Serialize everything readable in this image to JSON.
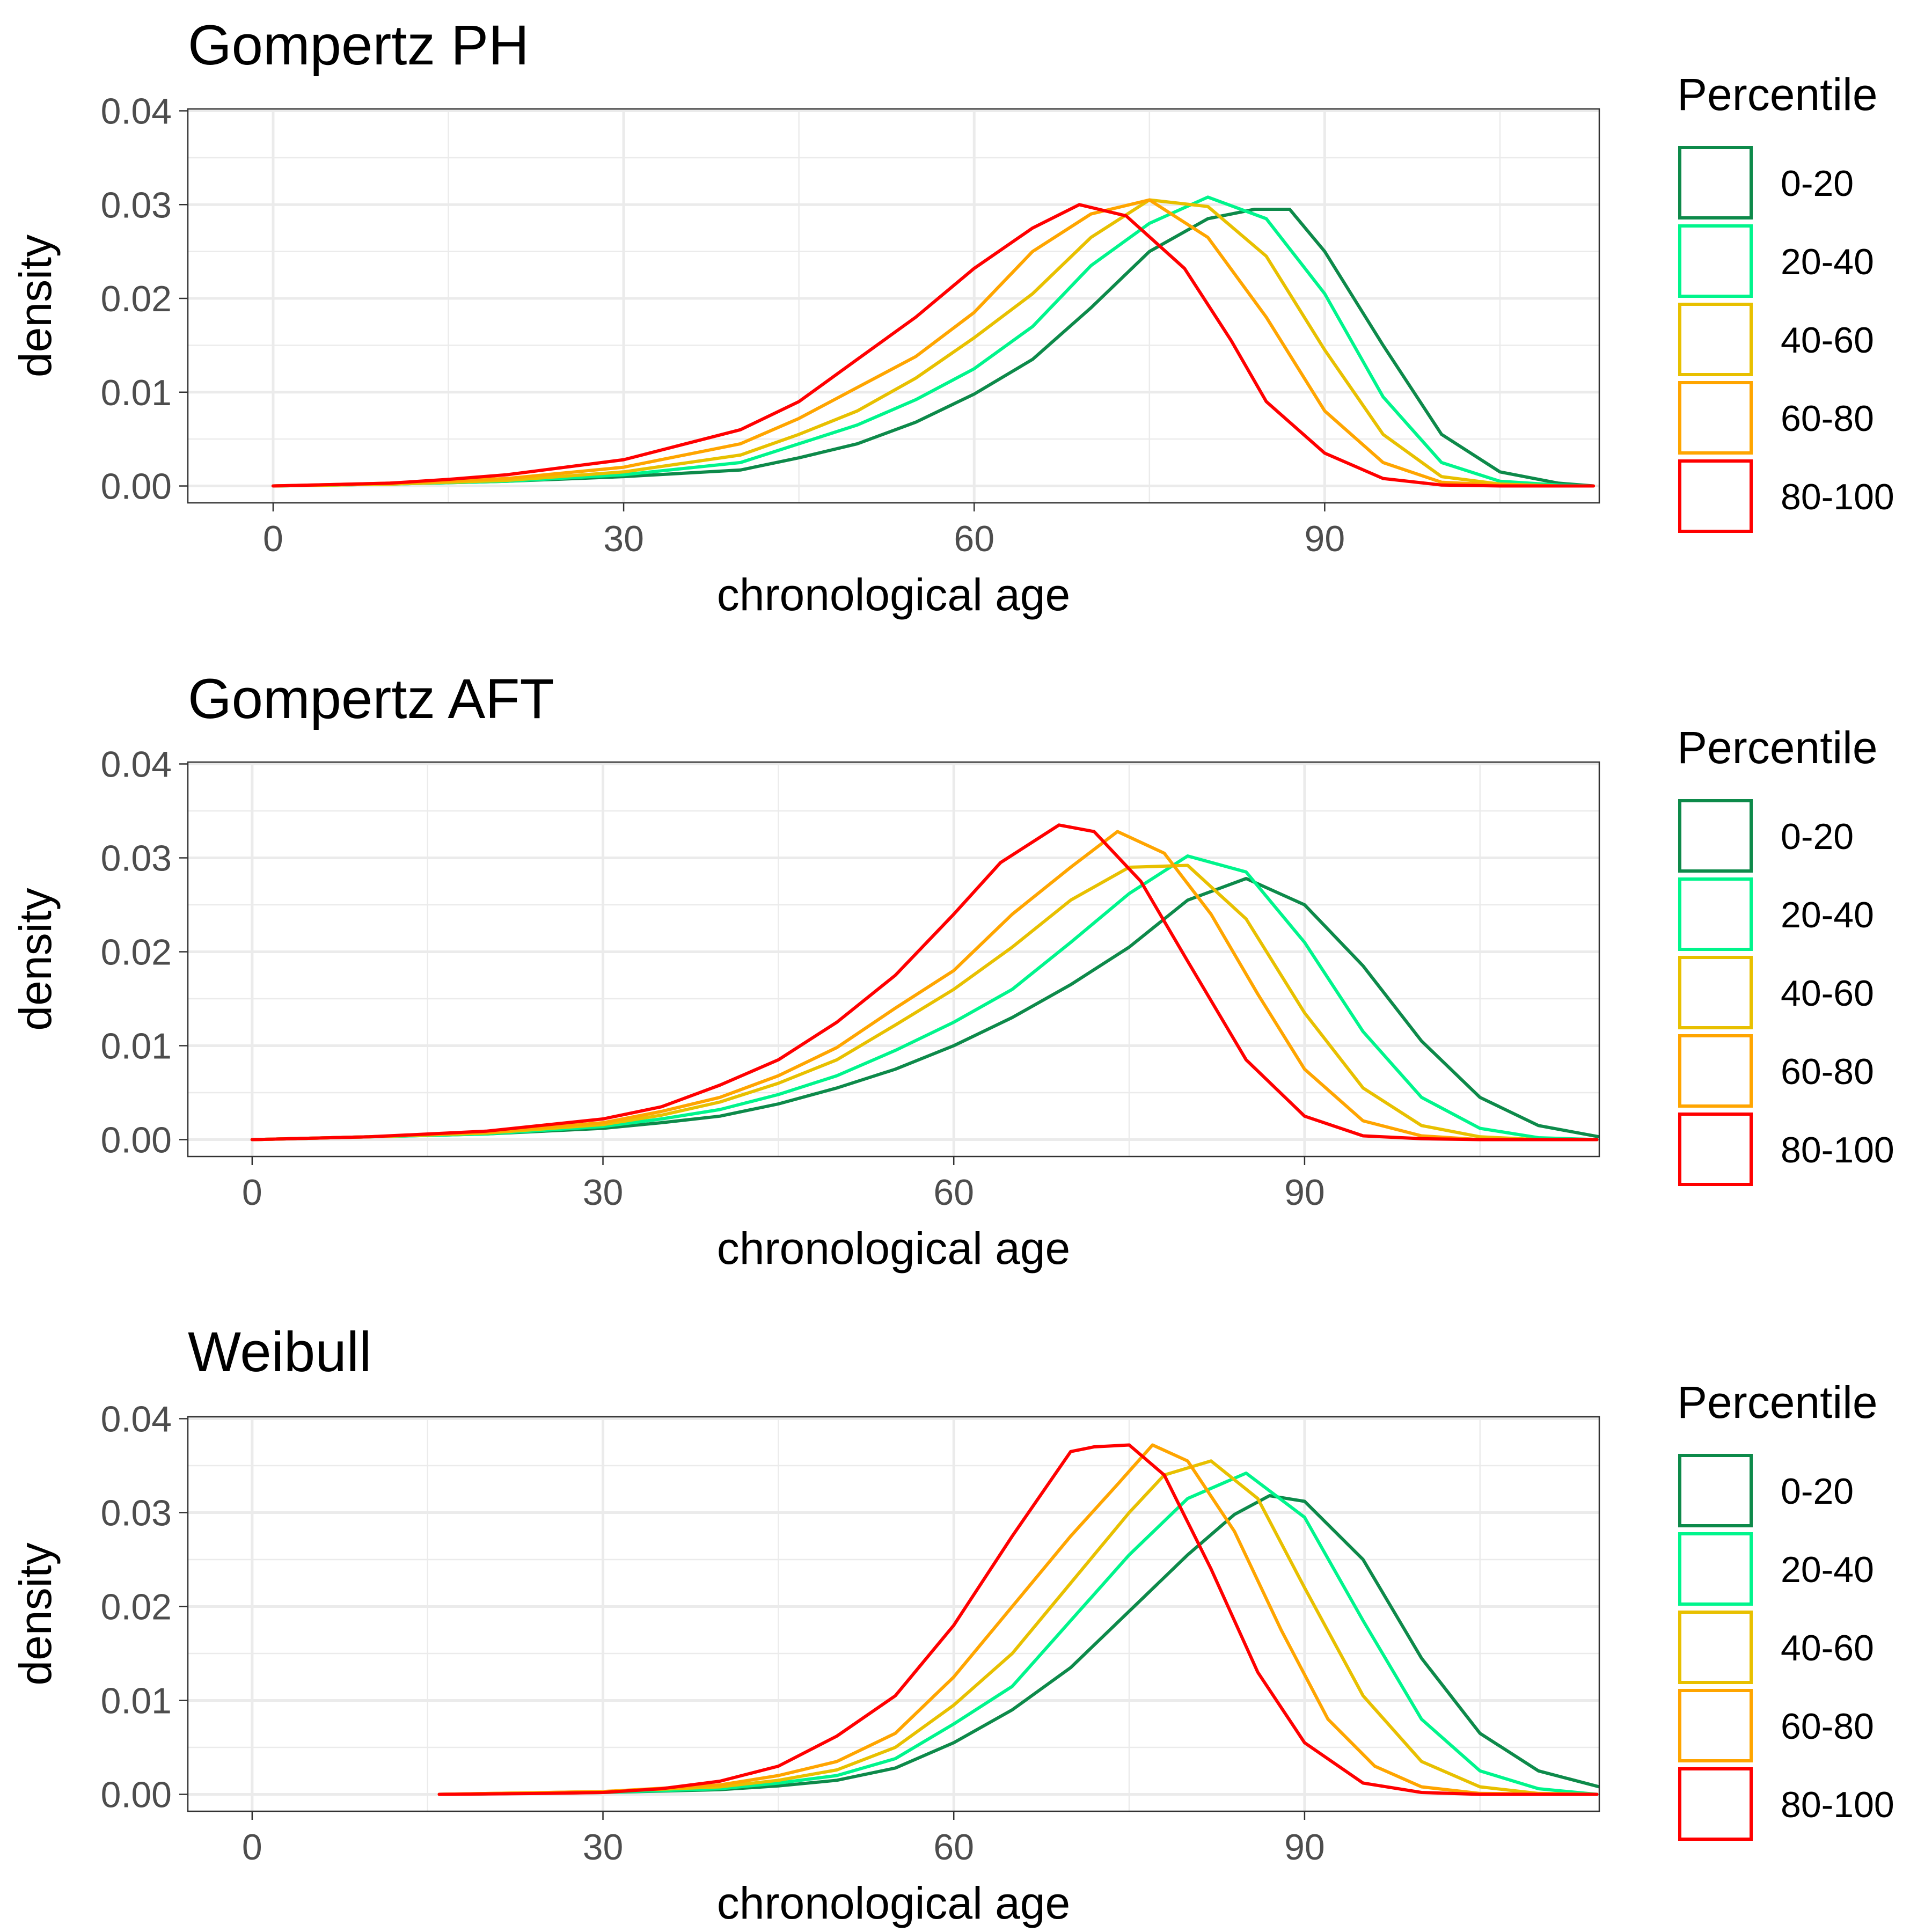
{
  "chart_data": [
    {
      "type": "line",
      "title": "Gompertz PH",
      "xlabel": "chronological age",
      "ylabel": "density",
      "xlim": [
        -7.3,
        113.5
      ],
      "ylim": [
        -0.0018,
        0.0402
      ],
      "x_ticks": [
        0,
        30,
        60,
        90
      ],
      "y_ticks": [
        0,
        0.01,
        0.02,
        0.03,
        0.04
      ],
      "x_tick_labels": [
        "0",
        "30",
        "60",
        "90"
      ],
      "y_tick_labels": [
        "0.00",
        "0.01",
        "0.02",
        "0.03",
        "0.04"
      ],
      "grid": true,
      "legend": {
        "title": "Percentile",
        "position": "right"
      },
      "series": [
        {
          "name": "0-20",
          "color": "#0d8a4a",
          "x": [
            0,
            10,
            20,
            30,
            40,
            45,
            50,
            55,
            60,
            65,
            70,
            75,
            80,
            84,
            87,
            90,
            95,
            100,
            105,
            110,
            113
          ],
          "y": [
            0,
            0.0002,
            0.0005,
            0.001,
            0.0017,
            0.003,
            0.0045,
            0.0068,
            0.0098,
            0.0135,
            0.019,
            0.025,
            0.0285,
            0.0295,
            0.0295,
            0.025,
            0.015,
            0.0055,
            0.0015,
            0.0003,
            0
          ]
        },
        {
          "name": "20-40",
          "color": "#00f58c",
          "x": [
            0,
            10,
            20,
            30,
            40,
            45,
            50,
            55,
            60,
            65,
            70,
            75,
            80,
            85,
            90,
            95,
            100,
            105,
            110,
            113
          ],
          "y": [
            0,
            0.0002,
            0.0005,
            0.0012,
            0.0025,
            0.0045,
            0.0065,
            0.0092,
            0.0125,
            0.017,
            0.0235,
            0.028,
            0.0308,
            0.0285,
            0.0205,
            0.0095,
            0.0025,
            0.0005,
            0.0001,
            0
          ]
        },
        {
          "name": "40-60",
          "color": "#e8c000",
          "x": [
            0,
            10,
            20,
            30,
            40,
            45,
            50,
            55,
            60,
            65,
            70,
            75,
            80,
            85,
            90,
            95,
            100,
            105,
            110,
            113
          ],
          "y": [
            0,
            0.0002,
            0.0006,
            0.0015,
            0.0033,
            0.0055,
            0.008,
            0.0115,
            0.0158,
            0.0205,
            0.0265,
            0.0305,
            0.0298,
            0.0245,
            0.0145,
            0.0055,
            0.001,
            0.0002,
            0,
            0
          ]
        },
        {
          "name": "60-80",
          "color": "#ffa500",
          "x": [
            0,
            10,
            20,
            30,
            40,
            45,
            50,
            55,
            60,
            65,
            70,
            75,
            80,
            85,
            90,
            95,
            100,
            105,
            110,
            113
          ],
          "y": [
            0,
            0.0003,
            0.0008,
            0.002,
            0.0045,
            0.0072,
            0.0105,
            0.0138,
            0.0185,
            0.025,
            0.029,
            0.0305,
            0.0265,
            0.018,
            0.008,
            0.0025,
            0.0004,
            0.0001,
            0,
            0
          ]
        },
        {
          "name": "80-100",
          "color": "#ff0000",
          "x": [
            0,
            10,
            15,
            20,
            30,
            40,
            45,
            50,
            55,
            60,
            65,
            69,
            73,
            78,
            82,
            85,
            90,
            95,
            100,
            105,
            113
          ],
          "y": [
            0,
            0.0003,
            0.0007,
            0.0012,
            0.0028,
            0.006,
            0.009,
            0.0135,
            0.018,
            0.0232,
            0.0275,
            0.03,
            0.0288,
            0.0232,
            0.0155,
            0.009,
            0.0035,
            0.0008,
            0.0001,
            0,
            0
          ]
        }
      ]
    },
    {
      "type": "line",
      "title": "Gompertz AFT",
      "xlabel": "chronological age",
      "ylabel": "density",
      "xlim": [
        -5.5,
        115.2
      ],
      "ylim": [
        -0.0018,
        0.0402
      ],
      "x_ticks": [
        0,
        30,
        60,
        90
      ],
      "y_ticks": [
        0,
        0.01,
        0.02,
        0.03,
        0.04
      ],
      "x_tick_labels": [
        "0",
        "30",
        "60",
        "90"
      ],
      "y_tick_labels": [
        "0.00",
        "0.01",
        "0.02",
        "0.03",
        "0.04"
      ],
      "grid": true,
      "legend": {
        "title": "Percentile",
        "position": "right"
      },
      "series": [
        {
          "name": "0-20",
          "color": "#0d8a4a",
          "x": [
            0,
            10,
            20,
            30,
            35,
            40,
            45,
            50,
            55,
            60,
            65,
            70,
            75,
            80,
            85,
            90,
            95,
            100,
            105,
            110,
            115.2
          ],
          "y": [
            0,
            0.0003,
            0.0006,
            0.0012,
            0.0018,
            0.0025,
            0.0038,
            0.0055,
            0.0075,
            0.01,
            0.013,
            0.0165,
            0.0205,
            0.0255,
            0.0278,
            0.025,
            0.0185,
            0.0105,
            0.0045,
            0.0015,
            0.0003
          ]
        },
        {
          "name": "20-40",
          "color": "#00f58c",
          "x": [
            0,
            10,
            20,
            30,
            35,
            40,
            45,
            50,
            55,
            60,
            65,
            70,
            75,
            80,
            85,
            90,
            95,
            100,
            105,
            110,
            115
          ],
          "y": [
            0,
            0.0003,
            0.0006,
            0.0014,
            0.0022,
            0.0032,
            0.0048,
            0.0068,
            0.0095,
            0.0125,
            0.016,
            0.021,
            0.0262,
            0.0302,
            0.0285,
            0.021,
            0.0115,
            0.0045,
            0.0012,
            0.0002,
            0
          ]
        },
        {
          "name": "40-60",
          "color": "#e8c000",
          "x": [
            0,
            10,
            20,
            30,
            35,
            40,
            45,
            50,
            55,
            60,
            65,
            70,
            75,
            80,
            85,
            90,
            95,
            100,
            105,
            110,
            115
          ],
          "y": [
            0,
            0.0003,
            0.0007,
            0.0016,
            0.0026,
            0.004,
            0.006,
            0.0085,
            0.0122,
            0.016,
            0.0205,
            0.0255,
            0.029,
            0.0292,
            0.0235,
            0.0135,
            0.0055,
            0.0015,
            0.0003,
            0,
            0
          ]
        },
        {
          "name": "60-80",
          "color": "#ffa500",
          "x": [
            0,
            10,
            20,
            30,
            35,
            40,
            45,
            50,
            55,
            60,
            65,
            70,
            74,
            78,
            82,
            86,
            90,
            95,
            100,
            105,
            115
          ],
          "y": [
            0,
            0.0003,
            0.0008,
            0.0018,
            0.003,
            0.0045,
            0.0068,
            0.0098,
            0.014,
            0.018,
            0.024,
            0.029,
            0.0328,
            0.0305,
            0.024,
            0.0155,
            0.0075,
            0.002,
            0.0004,
            0,
            0
          ]
        },
        {
          "name": "80-100",
          "color": "#ff0000",
          "x": [
            0,
            10,
            20,
            30,
            35,
            40,
            45,
            50,
            55,
            60,
            64,
            69,
            72,
            76,
            80,
            85,
            90,
            95,
            100,
            105,
            115
          ],
          "y": [
            0,
            0.0003,
            0.0009,
            0.0022,
            0.0035,
            0.0058,
            0.0085,
            0.0125,
            0.0175,
            0.024,
            0.0295,
            0.0335,
            0.0328,
            0.0275,
            0.019,
            0.0085,
            0.0025,
            0.0004,
            0.0001,
            0,
            0
          ]
        }
      ]
    },
    {
      "type": "line",
      "title": "Weibull",
      "xlabel": "chronological age",
      "ylabel": "density",
      "xlim": [
        -5.5,
        115.2
      ],
      "ylim": [
        -0.0018,
        0.0402
      ],
      "x_ticks": [
        0,
        30,
        60,
        90
      ],
      "y_ticks": [
        0,
        0.01,
        0.02,
        0.03,
        0.04
      ],
      "x_tick_labels": [
        "0",
        "30",
        "60",
        "90"
      ],
      "y_tick_labels": [
        "0.00",
        "0.01",
        "0.02",
        "0.03",
        "0.04"
      ],
      "grid": true,
      "legend": {
        "title": "Percentile",
        "position": "right"
      },
      "series": [
        {
          "name": "0-20",
          "color": "#0d8a4a",
          "x": [
            16,
            30,
            40,
            45,
            50,
            55,
            60,
            65,
            70,
            75,
            80,
            84,
            87,
            90,
            95,
            100,
            105,
            110,
            115.2
          ],
          "y": [
            0,
            0.0002,
            0.0005,
            0.0009,
            0.0015,
            0.0028,
            0.0055,
            0.009,
            0.0135,
            0.0195,
            0.0255,
            0.0298,
            0.0318,
            0.0312,
            0.025,
            0.0145,
            0.0065,
            0.0025,
            0.0008
          ]
        },
        {
          "name": "20-40",
          "color": "#00f58c",
          "x": [
            16,
            30,
            40,
            45,
            50,
            55,
            60,
            65,
            70,
            75,
            80,
            85,
            90,
            95,
            100,
            105,
            110,
            115
          ],
          "y": [
            0,
            0.0002,
            0.0006,
            0.0012,
            0.002,
            0.0038,
            0.0075,
            0.0115,
            0.0185,
            0.0255,
            0.0315,
            0.0342,
            0.0295,
            0.0185,
            0.008,
            0.0025,
            0.0006,
            0
          ]
        },
        {
          "name": "40-60",
          "color": "#e8c000",
          "x": [
            16,
            30,
            40,
            45,
            50,
            55,
            60,
            65,
            70,
            75,
            78,
            82,
            86,
            90,
            95,
            100,
            105,
            110,
            115
          ],
          "y": [
            0,
            0.0003,
            0.0008,
            0.0015,
            0.0026,
            0.005,
            0.0095,
            0.015,
            0.0225,
            0.03,
            0.034,
            0.0355,
            0.0315,
            0.022,
            0.0105,
            0.0035,
            0.0008,
            0.0001,
            0
          ]
        },
        {
          "name": "60-80",
          "color": "#ffa500",
          "x": [
            16,
            30,
            40,
            45,
            50,
            55,
            60,
            65,
            70,
            74,
            77,
            80,
            84,
            88,
            92,
            96,
            100,
            105,
            115
          ],
          "y": [
            0,
            0.0003,
            0.001,
            0.002,
            0.0035,
            0.0065,
            0.0125,
            0.02,
            0.0275,
            0.033,
            0.0372,
            0.0355,
            0.028,
            0.0175,
            0.008,
            0.003,
            0.0008,
            0.0001,
            0
          ]
        },
        {
          "name": "80-100",
          "color": "#ff0000",
          "x": [
            16,
            25,
            30,
            35,
            40,
            45,
            50,
            55,
            60,
            65,
            70,
            72,
            75,
            78,
            82,
            86,
            90,
            95,
            100,
            105,
            115
          ],
          "y": [
            0,
            0.0001,
            0.0002,
            0.0006,
            0.0014,
            0.003,
            0.0062,
            0.0105,
            0.018,
            0.0275,
            0.0365,
            0.037,
            0.0372,
            0.034,
            0.024,
            0.013,
            0.0055,
            0.0012,
            0.0002,
            0,
            0
          ]
        }
      ]
    }
  ]
}
